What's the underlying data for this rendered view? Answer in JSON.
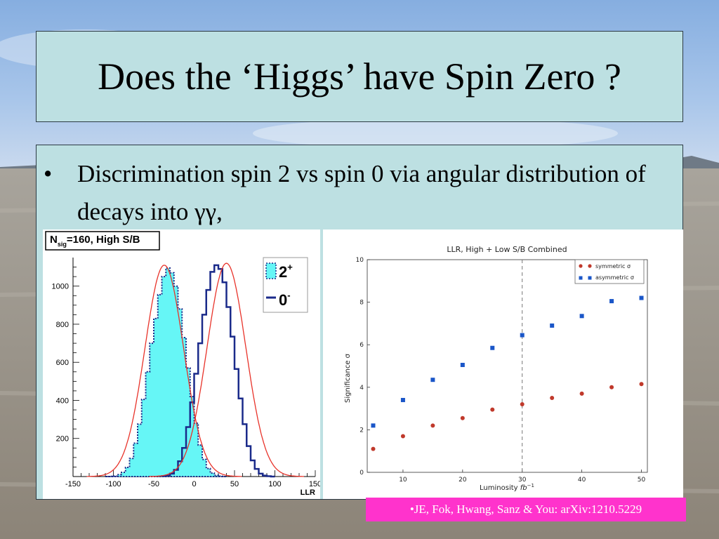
{
  "slide": {
    "title": "Does the ‘Higgs’ have Spin Zero ?",
    "bullet_symbol": "•",
    "bullet_text": "Discrimination spin 2 vs spin 0 via angular distribution of decays into γγ,",
    "citation": "•JE, Fok, Hwang, Sanz & You: arXiv:1210.5229"
  },
  "colors": {
    "box_fill": "#bde0e2",
    "box_border": "#2c3a44",
    "hist_spin2_fill": "#66f6f6",
    "hist_spin2_line": "#1a2a8a",
    "hist_spin0_line": "#1a2a8a",
    "fit_line": "#e8332a",
    "symmetric": "#c0392b",
    "asymmetric": "#1a56c8",
    "citation_bg": "#ff33cc"
  },
  "chart_data": [
    {
      "type": "area",
      "title": "N_sig=160, High S/B",
      "title_main": "N",
      "title_sub": "sig",
      "title_rest": "=160, High S/B",
      "xlabel": "LLR",
      "ylabel": "",
      "xlim": [
        -150,
        150
      ],
      "ylim": [
        0,
        1150
      ],
      "xticks": [
        -150,
        -100,
        -50,
        0,
        50,
        100,
        150
      ],
      "yticks": [
        200,
        400,
        600,
        800,
        1000
      ],
      "bin_edges_start": -110,
      "bin_width": 5,
      "legend_placement": "top-right",
      "series": [
        {
          "name": "2⁺",
          "legend_main": "2",
          "legend_sup": "+",
          "style": "filled-dotted",
          "values": [
            0,
            1,
            2,
            10,
            22,
            48,
            95,
            175,
            275,
            405,
            550,
            700,
            830,
            955,
            1050,
            1095,
            1070,
            1000,
            880,
            730,
            570,
            420,
            280,
            165,
            90,
            42,
            18,
            6,
            2,
            0
          ]
        },
        {
          "name": "0⁻",
          "legend_main": "0",
          "legend_sup": "-",
          "style": "step-solid",
          "start": -40,
          "values": [
            2,
            5,
            15,
            35,
            80,
            150,
            260,
            390,
            540,
            700,
            850,
            980,
            1075,
            1110,
            1090,
            1020,
            890,
            735,
            565,
            410,
            275,
            160,
            85,
            40,
            15,
            5,
            2,
            0
          ]
        }
      ],
      "fits": [
        {
          "mean": -37,
          "sigma": 24,
          "amplitude": 1110
        },
        {
          "mean": 40,
          "sigma": 24,
          "amplitude": 1120
        }
      ]
    },
    {
      "type": "scatter",
      "title": "LLR, High + Low S/B Combined",
      "xlabel": "Luminosity",
      "xlabel_unit_main": "fb",
      "xlabel_unit_sup": "−1",
      "ylabel": "Significance σ",
      "xlim": [
        4,
        51
      ],
      "ylim": [
        0,
        10
      ],
      "xticks": [
        10,
        20,
        30,
        40,
        50
      ],
      "yticks": [
        0,
        2,
        4,
        6,
        8,
        10
      ],
      "vline_x": 30,
      "legend_placement": "top-right",
      "x": [
        5,
        10,
        15,
        20,
        25,
        30,
        35,
        40,
        45,
        50
      ],
      "series": [
        {
          "name": "symmetric σ",
          "marker": "circle",
          "values": [
            1.1,
            1.7,
            2.2,
            2.55,
            2.95,
            3.2,
            3.5,
            3.7,
            4.0,
            4.15
          ]
        },
        {
          "name": "asymmetric σ",
          "marker": "square",
          "values": [
            2.2,
            3.4,
            4.35,
            5.05,
            5.85,
            6.45,
            6.9,
            7.35,
            8.05,
            8.2
          ]
        }
      ]
    }
  ]
}
